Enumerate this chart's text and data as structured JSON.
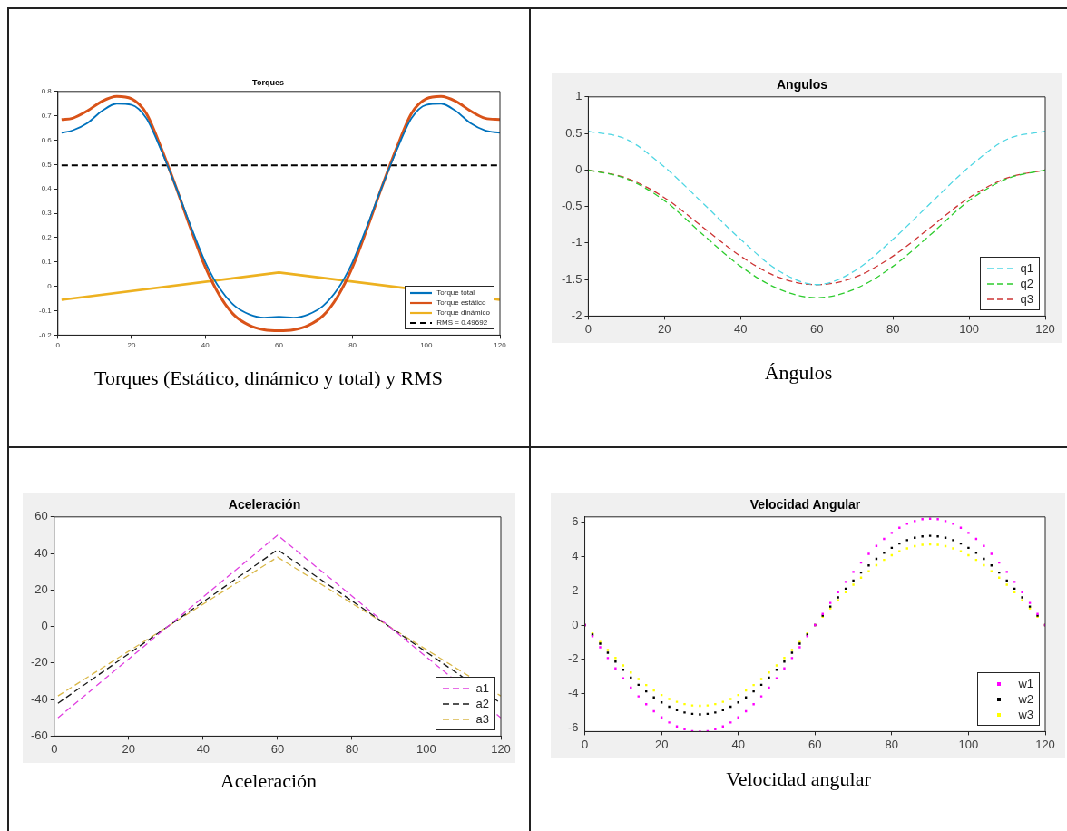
{
  "chart_data": [
    {
      "type": "line",
      "title": "Torques",
      "xlim": [
        0,
        120
      ],
      "xticks": [
        0,
        20,
        40,
        60,
        80,
        100,
        120
      ],
      "ylim": [
        -0.2,
        0.8
      ],
      "yticks": [
        -0.2,
        -0.1,
        0,
        0.1,
        0.2,
        0.3,
        0.4,
        0.5,
        0.6,
        0.7,
        0.8
      ],
      "grid": false,
      "legend": "bottom right",
      "annotations": [
        "Torques (Estático, dinámico y total) y RMS"
      ],
      "series": [
        {
          "name": "Torque total",
          "color": "#0072bd",
          "line_style": "solid",
          "x": [
            1,
            4,
            8,
            12,
            16,
            20,
            24,
            28,
            32,
            36,
            40,
            44,
            48,
            52,
            56,
            60,
            64,
            68,
            72,
            76,
            80,
            84,
            88,
            92,
            96,
            100,
            104,
            108,
            112,
            116,
            120
          ],
          "values": [
            0.63,
            0.64,
            0.67,
            0.72,
            0.75,
            0.745,
            0.69,
            0.56,
            0.41,
            0.25,
            0.1,
            -0.01,
            -0.08,
            -0.115,
            -0.128,
            -0.125,
            -0.128,
            -0.115,
            -0.08,
            -0.01,
            0.1,
            0.25,
            0.41,
            0.56,
            0.69,
            0.745,
            0.75,
            0.72,
            0.67,
            0.64,
            0.63
          ]
        },
        {
          "name": "Torque estático",
          "color": "#d95319",
          "line_style": "solid",
          "x": [
            1,
            4,
            8,
            12,
            16,
            20,
            24,
            28,
            32,
            36,
            40,
            44,
            48,
            52,
            56,
            60,
            64,
            68,
            72,
            76,
            80,
            84,
            88,
            92,
            96,
            100,
            104,
            108,
            112,
            116,
            120
          ],
          "values": [
            0.685,
            0.69,
            0.72,
            0.76,
            0.78,
            0.77,
            0.71,
            0.57,
            0.41,
            0.24,
            0.08,
            -0.04,
            -0.12,
            -0.16,
            -0.178,
            -0.182,
            -0.178,
            -0.16,
            -0.12,
            -0.04,
            0.08,
            0.24,
            0.41,
            0.57,
            0.71,
            0.77,
            0.78,
            0.76,
            0.72,
            0.69,
            0.685
          ]
        },
        {
          "name": "Torque dinámico",
          "color": "#edb120",
          "line_style": "solid",
          "x": [
            1,
            60,
            120
          ],
          "values": [
            -0.055,
            0.057,
            -0.055
          ]
        },
        {
          "name": "RMS = 0.49692",
          "color": "#000000",
          "line_style": "dashed",
          "x": [
            1,
            120
          ],
          "values": [
            0.49692,
            0.49692
          ]
        }
      ]
    },
    {
      "type": "line",
      "title": "Angulos",
      "xlim": [
        0,
        120
      ],
      "xticks": [
        0,
        20,
        40,
        60,
        80,
        100,
        120
      ],
      "ylim": [
        -2,
        1
      ],
      "yticks": [
        -2,
        -1.5,
        -1,
        -0.5,
        0,
        0.5,
        1
      ],
      "grid": false,
      "legend": "bottom right",
      "annotations": [
        "Ángulos"
      ],
      "x": [
        0,
        10,
        20,
        30,
        40,
        50,
        60,
        70,
        80,
        90,
        100,
        110,
        120
      ],
      "series": [
        {
          "name": "q1",
          "color": "#4fd6e3",
          "line_style": "dashed",
          "values": [
            0.53,
            0.42,
            0.04,
            -0.45,
            -0.95,
            -1.38,
            -1.57,
            -1.38,
            -0.95,
            -0.45,
            0.04,
            0.42,
            0.53
          ]
        },
        {
          "name": "q2",
          "color": "#2ecc2e",
          "line_style": "dashed",
          "values": [
            0,
            -0.12,
            -0.42,
            -0.88,
            -1.32,
            -1.63,
            -1.75,
            -1.63,
            -1.32,
            -0.88,
            -0.42,
            -0.12,
            0
          ]
        },
        {
          "name": "q3",
          "color": "#cc3333",
          "line_style": "dashed",
          "values": [
            0,
            -0.11,
            -0.38,
            -0.78,
            -1.18,
            -1.47,
            -1.57,
            -1.47,
            -1.18,
            -0.78,
            -0.38,
            -0.11,
            0
          ]
        }
      ]
    },
    {
      "type": "line",
      "title": "Aceleración",
      "xlim": [
        0,
        120
      ],
      "xticks": [
        0,
        20,
        40,
        60,
        80,
        100,
        120
      ],
      "ylim": [
        -60,
        60
      ],
      "yticks": [
        -60,
        -40,
        -20,
        0,
        20,
        40,
        60
      ],
      "grid": false,
      "legend": "bottom right",
      "annotations": [
        "Aceleración"
      ],
      "x": [
        1,
        60,
        120
      ],
      "series": [
        {
          "name": "a1",
          "color": "#e040e0",
          "line_style": "dashed",
          "values": [
            -50,
            50,
            -50
          ]
        },
        {
          "name": "a2",
          "color": "#1a1a1a",
          "line_style": "dashed",
          "values": [
            -42,
            42,
            -42
          ]
        },
        {
          "name": "a3",
          "color": "#d9b84a",
          "line_style": "dashed",
          "values": [
            -38,
            38,
            -38
          ]
        }
      ]
    },
    {
      "type": "scatter",
      "title": "Velocidad Angular",
      "xlim": [
        0,
        120
      ],
      "xticks": [
        0,
        20,
        40,
        60,
        80,
        100,
        120
      ],
      "ylim": [
        -6.2,
        6.3
      ],
      "yticks": [
        -6,
        -4,
        -2,
        0,
        2,
        4,
        6
      ],
      "grid": false,
      "legend": "bottom right",
      "marker": "square",
      "annotations": [
        "Velocidad angular"
      ],
      "x": [
        0,
        2,
        4,
        6,
        8,
        10,
        12,
        14,
        16,
        18,
        20,
        22,
        24,
        26,
        28,
        30,
        32,
        34,
        36,
        38,
        40,
        42,
        44,
        46,
        48,
        50,
        52,
        54,
        56,
        58,
        60,
        62,
        64,
        66,
        68,
        70,
        72,
        74,
        76,
        78,
        80,
        82,
        84,
        86,
        88,
        90,
        92,
        94,
        96,
        98,
        100,
        102,
        104,
        106,
        108,
        110,
        112,
        114,
        116,
        118,
        120
      ],
      "series": [
        {
          "name": "w1",
          "color": "#ff00ff",
          "values": [
            0,
            -0.65,
            -1.29,
            -1.92,
            -2.52,
            -3.1,
            -3.64,
            -4.15,
            -4.61,
            -5.02,
            -5.37,
            -5.67,
            -5.9,
            -6.06,
            -6.17,
            -6.2,
            -6.17,
            -6.06,
            -5.9,
            -5.67,
            -5.37,
            -5.02,
            -4.61,
            -4.15,
            -3.64,
            -3.1,
            -2.52,
            -1.92,
            -1.29,
            -0.65,
            0,
            0.65,
            1.29,
            1.92,
            2.52,
            3.1,
            3.64,
            4.15,
            4.61,
            5.02,
            5.37,
            5.67,
            5.9,
            6.06,
            6.17,
            6.2,
            6.17,
            6.06,
            5.9,
            5.67,
            5.37,
            5.02,
            4.61,
            4.15,
            3.64,
            3.1,
            2.52,
            1.92,
            1.29,
            0.65,
            0
          ]
        },
        {
          "name": "w2",
          "color": "#000000",
          "values": [
            0,
            -0.55,
            -1.08,
            -1.61,
            -2.12,
            -2.6,
            -3.06,
            -3.48,
            -3.86,
            -4.21,
            -4.5,
            -4.75,
            -4.95,
            -5.09,
            -5.17,
            -5.2,
            -5.17,
            -5.09,
            -4.95,
            -4.75,
            -4.5,
            -4.21,
            -3.86,
            -3.48,
            -3.06,
            -2.6,
            -2.12,
            -1.61,
            -1.08,
            -0.55,
            0,
            0.55,
            1.08,
            1.61,
            2.12,
            2.6,
            3.06,
            3.48,
            3.86,
            4.21,
            4.5,
            4.75,
            4.95,
            5.09,
            5.17,
            5.2,
            5.17,
            5.09,
            4.95,
            4.75,
            4.5,
            4.21,
            3.86,
            3.48,
            3.06,
            2.6,
            2.12,
            1.61,
            1.08,
            0.55,
            0
          ]
        },
        {
          "name": "w3",
          "color": "#ffff00",
          "values": [
            0,
            -0.49,
            -0.98,
            -1.45,
            -1.91,
            -2.35,
            -2.76,
            -3.14,
            -3.49,
            -3.8,
            -4.07,
            -4.3,
            -4.47,
            -4.6,
            -4.68,
            -4.7,
            -4.68,
            -4.6,
            -4.47,
            -4.3,
            -4.07,
            -3.8,
            -3.49,
            -3.14,
            -2.76,
            -2.35,
            -1.91,
            -1.45,
            -0.98,
            -0.49,
            0,
            0.49,
            0.98,
            1.45,
            1.91,
            2.35,
            2.76,
            3.14,
            3.49,
            3.8,
            4.07,
            4.3,
            4.47,
            4.6,
            4.68,
            4.7,
            4.68,
            4.6,
            4.47,
            4.3,
            4.07,
            3.8,
            3.49,
            3.14,
            2.76,
            2.35,
            1.91,
            1.45,
            0.98,
            0.49,
            0
          ]
        }
      ]
    }
  ]
}
